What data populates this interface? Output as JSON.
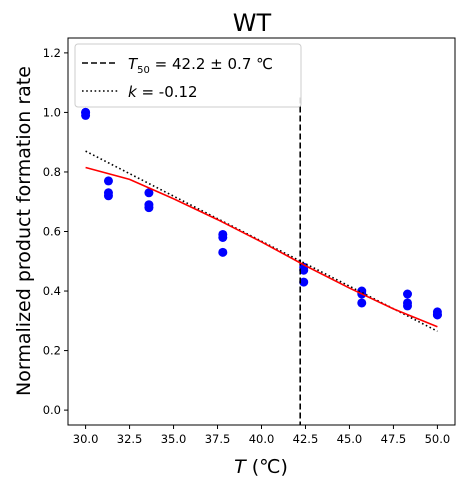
{
  "chart_data": {
    "type": "scatter",
    "title": "WT",
    "xlabel_italic": "T",
    "xlabel_unit": " (℃)",
    "ylabel": "Normalized product formation rate",
    "xlim": [
      29.0,
      51.0
    ],
    "ylim": [
      -0.05,
      1.25
    ],
    "x_ticks": [
      30.0,
      32.5,
      35.0,
      37.5,
      40.0,
      42.5,
      45.0,
      47.5,
      50.0
    ],
    "x_tick_labels": [
      "30.0",
      "32.5",
      "35.0",
      "37.5",
      "40.0",
      "42.5",
      "45.0",
      "47.5",
      "50.0"
    ],
    "y_ticks": [
      0.0,
      0.2,
      0.4,
      0.6,
      0.8,
      1.0,
      1.2
    ],
    "y_tick_labels": [
      "0.0",
      "0.2",
      "0.4",
      "0.6",
      "0.8",
      "1.0",
      "1.2"
    ],
    "grid": false,
    "legend_position": "top-left",
    "points": {
      "color": "#0000ff",
      "x": [
        30.0,
        30.0,
        30.0,
        31.3,
        31.3,
        31.3,
        33.6,
        33.6,
        33.6,
        37.8,
        37.8,
        37.8,
        42.4,
        42.4,
        42.4,
        45.7,
        45.7,
        45.7,
        48.3,
        48.3,
        48.3,
        50.0,
        50.0,
        50.0
      ],
      "y": [
        1.0,
        1.0,
        0.99,
        0.77,
        0.73,
        0.72,
        0.73,
        0.69,
        0.68,
        0.59,
        0.58,
        0.53,
        0.48,
        0.47,
        0.43,
        0.4,
        0.39,
        0.36,
        0.39,
        0.36,
        0.35,
        0.33,
        0.32,
        0.32
      ]
    },
    "fit_curve": {
      "color": "#ff0000",
      "x": [
        30.0,
        32.5,
        35.0,
        37.5,
        40.0,
        42.5,
        45.0,
        47.5,
        50.0
      ],
      "y": [
        0.815,
        0.775,
        0.71,
        0.64,
        0.565,
        0.485,
        0.41,
        0.34,
        0.28
      ]
    },
    "vline": {
      "x": 42.2,
      "y_range": [
        -0.05,
        1.05
      ],
      "color": "#000000",
      "style": "dashed",
      "legend_label_prefix": "T",
      "legend_label_sub": "50",
      "legend_label_value": " = 42.2 ± 0.7 ℃"
    },
    "slope_line": {
      "x": [
        30.0,
        50.0
      ],
      "y": [
        0.87,
        0.265
      ],
      "color": "#000000",
      "style": "dotted",
      "legend_label_prefix": "k",
      "legend_label_value": " = -0.12"
    }
  }
}
